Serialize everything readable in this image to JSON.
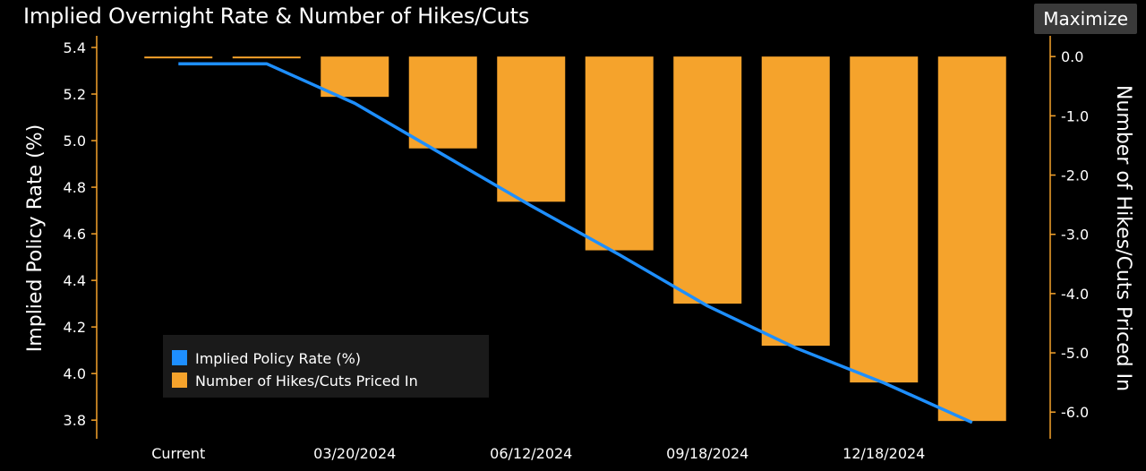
{
  "header": {
    "title": "Implied Overnight Rate & Number of Hikes/Cuts",
    "maximize_label": "Maximize"
  },
  "colors": {
    "background": "#000000",
    "bar": "#f5a32c",
    "line": "#1e8fff",
    "axis": "#f5a32c",
    "legend_bg": "#1a1a1a"
  },
  "chart_data": {
    "type": "bar",
    "categories": [
      "Current",
      "",
      "03/20/2024",
      "",
      "06/12/2024",
      "",
      "09/18/2024",
      "",
      "12/18/2024",
      ""
    ],
    "x_tick_labels": [
      "Current",
      "03/20/2024",
      "06/12/2024",
      "09/18/2024",
      "12/18/2024"
    ],
    "series": [
      {
        "name": "Number of Hikes/Cuts Priced In",
        "type": "bar",
        "axis": "right",
        "color": "#f5a32c",
        "values": [
          0.0,
          0.0,
          -0.68,
          -1.55,
          -2.45,
          -3.27,
          -4.17,
          -4.88,
          -5.5,
          -6.15
        ]
      },
      {
        "name": "Implied Policy Rate (%)",
        "type": "line",
        "axis": "left",
        "color": "#1e8fff",
        "values": [
          5.33,
          5.33,
          5.16,
          4.94,
          4.72,
          4.51,
          4.29,
          4.11,
          3.96,
          3.79
        ]
      }
    ],
    "ylabel": "Implied Policy Rate (%)",
    "ylabel_right": "Number of Hikes/Cuts Priced In",
    "ylim": [
      3.72,
      5.45
    ],
    "ylim_right": [
      -6.45,
      0.35
    ],
    "yticks": [
      "5.4",
      "5.2",
      "5.0",
      "4.8",
      "4.6",
      "4.4",
      "4.2",
      "4.0",
      "3.8"
    ],
    "yticks_right": [
      "0.0",
      "-1.0",
      "-2.0",
      "-3.0",
      "-4.0",
      "-5.0",
      "-6.0"
    ],
    "legend": [
      "Implied Policy Rate (%)",
      "Number of Hikes/Cuts Priced In"
    ],
    "legend_position": "bottom-left",
    "grid": false
  }
}
